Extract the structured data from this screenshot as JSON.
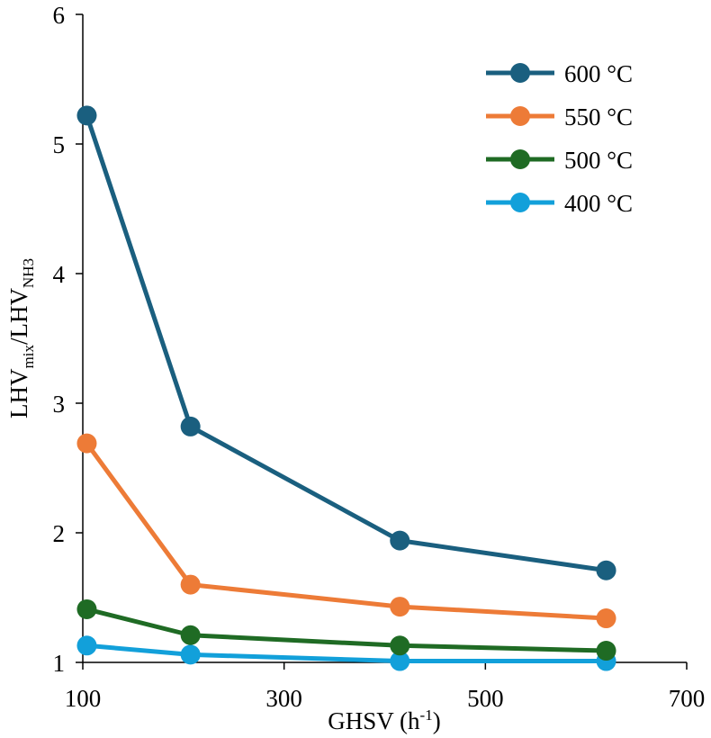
{
  "chart_data": {
    "type": "line",
    "xlabel": "GHSV (h-1)",
    "ylabel": "LHVmix/LHVNH3",
    "xlabel_parts": {
      "base": "GHSV (h",
      "sup": "-1",
      "end": ")"
    },
    "ylabel_parts": {
      "a": "LHV",
      "a_sub": "mix",
      "sep": "/LHV",
      "b_sub": "NH3"
    },
    "xlim": [
      100,
      700
    ],
    "ylim": [
      1,
      6
    ],
    "x_ticks": [
      "100",
      "300",
      "500",
      "700"
    ],
    "y_ticks": [
      "1",
      "2",
      "3",
      "4",
      "5",
      "6"
    ],
    "x": [
      104,
      207,
      415,
      620
    ],
    "series": [
      {
        "name": "600 °C",
        "color": "#1a5f7f",
        "values": [
          5.22,
          2.82,
          1.94,
          1.71
        ]
      },
      {
        "name": "550 °C",
        "color": "#ed7b37",
        "values": [
          2.69,
          1.6,
          1.43,
          1.34
        ]
      },
      {
        "name": "500 °C",
        "color": "#1f6b24",
        "values": [
          1.41,
          1.21,
          1.13,
          1.09
        ]
      },
      {
        "name": "400 °C",
        "color": "#12a0da",
        "values": [
          1.13,
          1.06,
          1.01,
          1.01
        ]
      }
    ],
    "legend": "top-right",
    "grid": false
  }
}
